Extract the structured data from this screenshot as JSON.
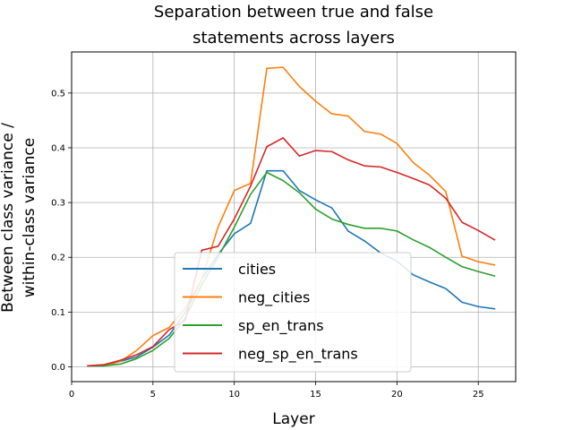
{
  "chart_data": {
    "type": "line",
    "title_lines": [
      "Separation between true and false",
      "statements across layers"
    ],
    "xlabel": "Layer",
    "ylabel_lines": [
      "Between class variance /",
      "within-class variance"
    ],
    "xlim": [
      0,
      27.3
    ],
    "ylim": [
      -0.027,
      0.575
    ],
    "xticks": [
      0,
      5,
      10,
      15,
      20,
      25
    ],
    "yticks": [
      0.0,
      0.1,
      0.2,
      0.3,
      0.4,
      0.5
    ],
    "ytick_labels": [
      "0.0",
      "0.1",
      "0.2",
      "0.3",
      "0.4",
      "0.5"
    ],
    "grid": true,
    "legend_position": "lower-center",
    "x": [
      1,
      2,
      3,
      4,
      5,
      6,
      7,
      8,
      9,
      10,
      11,
      12,
      13,
      14,
      15,
      16,
      17,
      18,
      19,
      20,
      21,
      22,
      23,
      24,
      25,
      26
    ],
    "series": [
      {
        "name": "cities",
        "color": "#1f77b4",
        "values": [
          0.002,
          0.002,
          0.01,
          0.018,
          0.036,
          0.058,
          0.1,
          0.16,
          0.205,
          0.243,
          0.262,
          0.358,
          0.358,
          0.322,
          0.305,
          0.29,
          0.248,
          0.23,
          0.208,
          0.193,
          0.168,
          0.155,
          0.143,
          0.118,
          0.11,
          0.106
        ]
      },
      {
        "name": "neg_cities",
        "color": "#ff7f0e",
        "values": [
          0.002,
          0.003,
          0.01,
          0.03,
          0.057,
          0.072,
          0.108,
          0.16,
          0.255,
          0.322,
          0.335,
          0.545,
          0.547,
          0.512,
          0.485,
          0.462,
          0.458,
          0.43,
          0.425,
          0.408,
          0.373,
          0.35,
          0.32,
          0.202,
          0.192,
          0.186
        ]
      },
      {
        "name": "sp_en_trans",
        "color": "#2ca02c",
        "values": [
          0.002,
          0.002,
          0.005,
          0.015,
          0.03,
          0.052,
          0.09,
          0.15,
          0.2,
          0.255,
          0.315,
          0.355,
          0.34,
          0.318,
          0.288,
          0.27,
          0.26,
          0.253,
          0.253,
          0.248,
          0.232,
          0.218,
          0.2,
          0.183,
          0.174,
          0.166
        ]
      },
      {
        "name": "neg_sp_en_trans",
        "color": "#d62728",
        "values": [
          0.002,
          0.004,
          0.012,
          0.022,
          0.037,
          0.068,
          0.085,
          0.213,
          0.22,
          0.27,
          0.33,
          0.402,
          0.418,
          0.385,
          0.395,
          0.393,
          0.378,
          0.367,
          0.365,
          0.355,
          0.344,
          0.332,
          0.308,
          0.264,
          0.249,
          0.232
        ]
      }
    ]
  }
}
